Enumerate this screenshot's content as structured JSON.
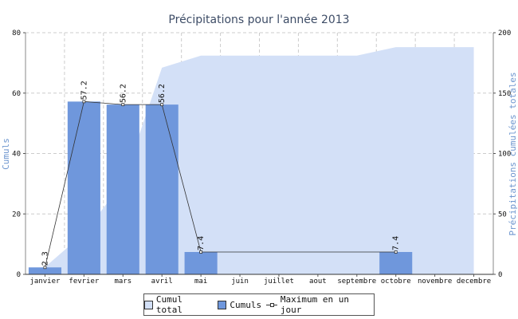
{
  "chart_data": {
    "type": "bar",
    "title": "Précipitations pour l'année 2013",
    "ylabel_left": "Cumuls",
    "ylabel_right": "Précipitations cumulées totales",
    "categories": [
      "janvier",
      "fevrier",
      "mars",
      "avril",
      "mai",
      "juin",
      "juillet",
      "aout",
      "septembre",
      "octobre",
      "novembre",
      "decembre"
    ],
    "ylim_left": [
      0,
      80
    ],
    "yticks_left": [
      0,
      20,
      40,
      60,
      80
    ],
    "ylim_right": [
      0,
      200
    ],
    "yticks_right": [
      0,
      50,
      100,
      150,
      200
    ],
    "grid": true,
    "series": [
      {
        "name": "Cumul total",
        "kind": "area",
        "axis": "right",
        "color": "#d3e0f7",
        "values": [
          6,
          34,
          76,
          171,
          181,
          181,
          181,
          181,
          181,
          188,
          188,
          188
        ]
      },
      {
        "name": "Cumuls",
        "kind": "bar",
        "axis": "left",
        "color": "#6f97dc",
        "values": [
          2.3,
          57.2,
          56.2,
          56.2,
          7.4,
          0,
          0,
          0,
          0,
          7.4,
          0,
          0
        ]
      },
      {
        "name": "Maximum en un jour",
        "kind": "line",
        "axis": "left",
        "color": "#333333",
        "values": [
          2.3,
          57.2,
          56.2,
          56.2,
          7.4,
          7.4,
          7.4,
          7.4,
          7.4,
          7.4,
          null,
          null
        ],
        "labels": [
          "2.3",
          "57.2",
          "56.2",
          "56.2",
          "7.4",
          "",
          "",
          "",
          "",
          "7.4",
          "",
          ""
        ]
      }
    ],
    "legend_position": "bottom"
  },
  "legend": {
    "cumul_total": "Cumul total",
    "cumuls": "Cumuls",
    "maximum": "Maximum en un jour"
  }
}
